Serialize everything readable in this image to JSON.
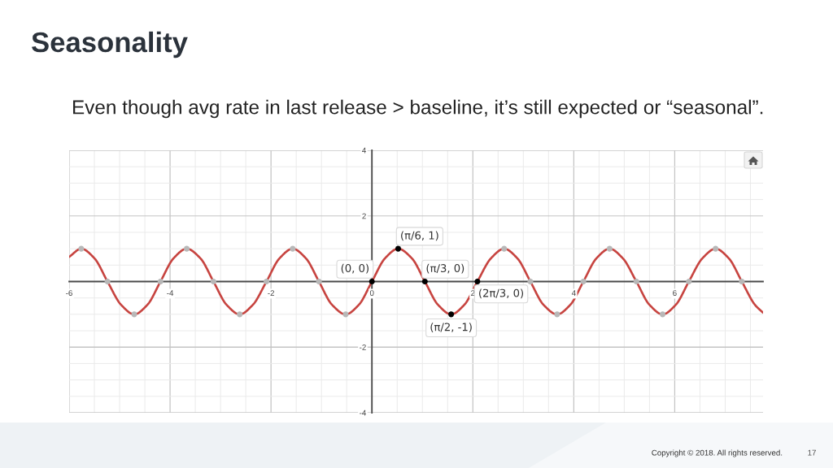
{
  "chart_data": {
    "type": "line",
    "title": "Seasonality",
    "subtitle": "Even though avg rate in last release > baseline, it’s still expected or “seasonal”.",
    "xlim": [
      -6,
      7.75
    ],
    "ylim": [
      -4,
      4
    ],
    "xticks": [
      -6,
      -4,
      -2,
      0,
      2,
      4,
      6
    ],
    "yticks": [
      -4,
      -2,
      2,
      4
    ],
    "grid": true,
    "series": [
      {
        "color": "#c74440",
        "x": [
          -6,
          -5.76,
          -5.5,
          -5.24,
          -4.97,
          -4.71,
          -4.45,
          -4.19,
          -3.93,
          -3.67,
          -3.4,
          -3.14,
          -2.88,
          -2.62,
          -2.36,
          -2.09,
          -1.83,
          -1.57,
          -1.31,
          -1.05,
          -0.79,
          -0.52,
          -0.26,
          0,
          0.26,
          0.52,
          0.79,
          1.05,
          1.31,
          1.57,
          1.83,
          2.09,
          2.36,
          2.62,
          2.88,
          3.14,
          3.4,
          3.67,
          3.93,
          4.19,
          4.45,
          4.71,
          4.97,
          5.24,
          5.5,
          5.76,
          6.02,
          6.28,
          6.55,
          6.81,
          7.07,
          7.33,
          7.59,
          7.75
        ],
        "values": [
          0.75,
          1,
          0.71,
          0,
          -0.71,
          -1,
          -0.71,
          0,
          0.71,
          1,
          0.71,
          0,
          -0.71,
          -1,
          -0.71,
          0,
          0.71,
          1,
          0.71,
          0,
          -0.71,
          -1,
          -0.71,
          0,
          0.71,
          1,
          0.71,
          0,
          -0.71,
          -1,
          -0.71,
          0,
          0.71,
          1,
          0.71,
          0,
          -0.71,
          -1,
          -0.71,
          0,
          0.71,
          1,
          0.71,
          0,
          -0.71,
          -1,
          -0.71,
          0,
          0.71,
          1,
          0.71,
          0,
          -0.71,
          -0.95
        ]
      },
      {
        "type": "scatter",
        "color": "#b8b8b8",
        "marker": "circle",
        "x": [
          -5.76,
          -5.24,
          -4.71,
          -4.19,
          -3.67,
          -3.14,
          -2.62,
          -2.09,
          -1.57,
          -1.05,
          -0.52,
          2.62,
          3.14,
          3.67,
          4.19,
          4.71,
          5.24,
          5.76,
          6.28,
          6.81,
          7.33
        ],
        "values": [
          1,
          0,
          -1,
          0,
          1,
          0,
          -1,
          0,
          1,
          0,
          -1,
          1,
          0,
          -1,
          0,
          1,
          0,
          -1,
          0,
          1,
          0
        ]
      },
      {
        "type": "scatter",
        "color": "#000000",
        "marker": "circle",
        "x": [
          0,
          0.52,
          1.05,
          1.57,
          2.09
        ],
        "values": [
          0,
          1,
          0,
          -1,
          0
        ]
      }
    ],
    "annotations": [
      {
        "text": "(0, 0)",
        "x": 0,
        "y": 0
      },
      {
        "text": "(π/6, 1)",
        "x": 0.52,
        "y": 1
      },
      {
        "text": "(π/3, 0)",
        "x": 1.05,
        "y": 0
      },
      {
        "text": "(π/2, -1)",
        "x": 1.57,
        "y": -1
      },
      {
        "text": "(2π/3, 0)",
        "x": 2.09,
        "y": 0
      },
      "Copyright © 2018. All rights reserved.",
      "17"
    ]
  }
}
